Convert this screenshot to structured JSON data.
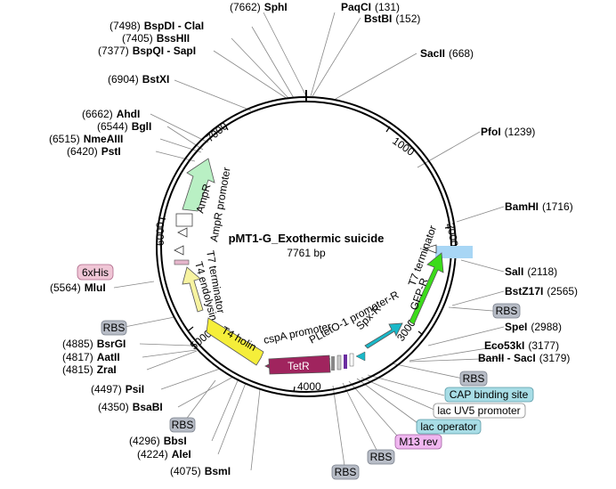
{
  "map": {
    "name": "pMT1-G_Exothermic suicide",
    "length_label": "7761 bp"
  },
  "ticks": [
    {
      "label": "1000"
    },
    {
      "label": "2000"
    },
    {
      "label": "3000"
    },
    {
      "label": "4000"
    },
    {
      "label": "5000"
    },
    {
      "label": "6000"
    },
    {
      "label": "7000"
    }
  ],
  "sites": [
    {
      "name": "SphI",
      "pos": "(7662)"
    },
    {
      "name": "PaqCI",
      "pos": "(131)"
    },
    {
      "name": "BstBI",
      "pos": "(152)"
    },
    {
      "name": "BspDI - ClaI",
      "pos": "(7498)"
    },
    {
      "name": "BssHII",
      "pos": "(7405)"
    },
    {
      "name": "BspQI - SapI",
      "pos": "(7377)"
    },
    {
      "name": "SacII",
      "pos": "(668)"
    },
    {
      "name": "BstXI",
      "pos": "(6904)"
    },
    {
      "name": "AhdI",
      "pos": "(6662)"
    },
    {
      "name": "BglI",
      "pos": "(6544)"
    },
    {
      "name": "NmeAIII",
      "pos": "(6515)"
    },
    {
      "name": "PstI",
      "pos": "(6420)"
    },
    {
      "name": "PfoI",
      "pos": "(1239)"
    },
    {
      "name": "BamHI",
      "pos": "(1716)"
    },
    {
      "name": "SalI",
      "pos": "(2118)"
    },
    {
      "name": "BstZ17I",
      "pos": "(2565)"
    },
    {
      "name": "SpeI",
      "pos": "(2988)"
    },
    {
      "name": "Eco53kI",
      "pos": "(3177)"
    },
    {
      "name": "BanII - SacI",
      "pos": "(3179)"
    },
    {
      "name": "MluI",
      "pos": "(5564)"
    },
    {
      "name": "BsrGI",
      "pos": "(4885)"
    },
    {
      "name": "AatII",
      "pos": "(4817)"
    },
    {
      "name": "ZraI",
      "pos": "(4815)"
    },
    {
      "name": "PsiI",
      "pos": "(4497)"
    },
    {
      "name": "BsaBI",
      "pos": "(4350)"
    },
    {
      "name": "BbsI",
      "pos": "(4296)"
    },
    {
      "name": "AleI",
      "pos": "(4224)"
    },
    {
      "name": "BsmI",
      "pos": "(4075)"
    }
  ],
  "boxes": [
    {
      "label": "6xHis"
    },
    {
      "label": "RBS"
    },
    {
      "label": "RBS"
    },
    {
      "label": "RBS"
    },
    {
      "label": "RBS"
    },
    {
      "label": "RBS"
    },
    {
      "label": "CAP binding site"
    },
    {
      "label": "lac UV5 promoter"
    },
    {
      "label": "lac operator"
    },
    {
      "label": "M13 rev"
    }
  ],
  "features": {
    "ampr": "AmpR",
    "ampr_promoter": "AmpR promoter",
    "t7_terminator_left": "T7 terminator",
    "t4_endolysin": "T4 endolysin",
    "t4_holin": "T4 holin",
    "cspa_promoter": "cspA promoter",
    "tetr": "TetR",
    "pltet_promoter": "PLtetO-1 promoter-R",
    "spx_r": "Spx-R",
    "gfp_r": "GFP-R",
    "t7_terminator_right": "T7 terminator"
  },
  "colors": {
    "backbone": "#000000",
    "leader": "#888888",
    "ampr": "#b9f0c4",
    "gfp": "#3bdc1a",
    "spx": "#1ab8c8",
    "tetr": "#a0245e",
    "t4": "#f5ee3a",
    "t4_light": "#f7f3a0",
    "term": "#ffffff",
    "his_bg": "#f0c6d6",
    "rbs_bg": "#b7bcc6",
    "cap_bg": "#a8dde6",
    "lac_op_bg": "#a8dde6",
    "lacuv5_bg": "#ffffff",
    "m13_bg": "#f0b6f0",
    "highlight": "#a8d6f5"
  }
}
